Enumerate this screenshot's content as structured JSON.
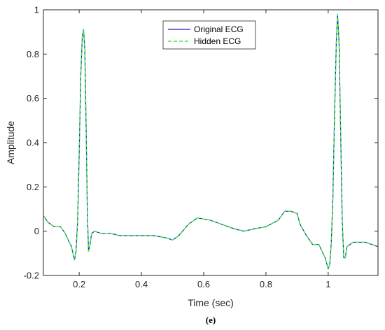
{
  "chart_data": {
    "type": "line",
    "title": "",
    "xlabel": "Time (sec)",
    "ylabel": "Amplitude",
    "xlim": [
      0.085,
      1.16
    ],
    "ylim": [
      -0.2,
      1.0
    ],
    "xticks": [
      0.2,
      0.4,
      0.6,
      0.8,
      1.0
    ],
    "xtick_labels": [
      "0.2",
      "0.4",
      "0.6",
      "0.8",
      "1"
    ],
    "yticks": [
      -0.2,
      0,
      0.2,
      0.4,
      0.6,
      0.8,
      1.0
    ],
    "ytick_labels": [
      "-0.2",
      "0",
      "0.2",
      "0.4",
      "0.6",
      "0.8",
      "1"
    ],
    "grid": false,
    "legend_position": "top-center",
    "series": [
      {
        "name": "Original ECG",
        "color": "#1f1fbf",
        "style": "solid",
        "x": [
          0.085,
          0.1,
          0.12,
          0.14,
          0.155,
          0.165,
          0.175,
          0.18,
          0.185,
          0.19,
          0.195,
          0.2,
          0.205,
          0.21,
          0.214,
          0.218,
          0.222,
          0.226,
          0.23,
          0.235,
          0.24,
          0.25,
          0.27,
          0.3,
          0.33,
          0.36,
          0.4,
          0.44,
          0.48,
          0.5,
          0.52,
          0.55,
          0.58,
          0.62,
          0.66,
          0.7,
          0.73,
          0.76,
          0.8,
          0.84,
          0.86,
          0.88,
          0.9,
          0.91,
          0.93,
          0.95,
          0.97,
          0.98,
          0.99,
          1.0,
          1.005,
          1.01,
          1.015,
          1.02,
          1.026,
          1.03,
          1.035,
          1.04,
          1.045,
          1.05,
          1.055,
          1.06,
          1.08,
          1.1,
          1.12,
          1.14,
          1.16
        ],
        "values": [
          0.07,
          0.04,
          0.02,
          0.02,
          -0.01,
          -0.04,
          -0.07,
          -0.1,
          -0.13,
          -0.09,
          0.05,
          0.35,
          0.7,
          0.88,
          0.91,
          0.82,
          0.5,
          0.1,
          -0.09,
          -0.06,
          -0.01,
          0.0,
          -0.01,
          -0.01,
          -0.02,
          -0.02,
          -0.02,
          -0.02,
          -0.03,
          -0.04,
          -0.02,
          0.03,
          0.06,
          0.05,
          0.03,
          0.01,
          0.0,
          0.01,
          0.02,
          0.05,
          0.09,
          0.09,
          0.08,
          0.03,
          -0.02,
          -0.06,
          -0.06,
          -0.09,
          -0.12,
          -0.17,
          -0.15,
          -0.05,
          0.15,
          0.5,
          0.85,
          0.98,
          0.85,
          0.45,
          0.05,
          -0.12,
          -0.12,
          -0.07,
          -0.05,
          -0.05,
          -0.05,
          -0.06,
          -0.07
        ]
      },
      {
        "name": "Hidden ECG",
        "color": "#33ee33",
        "style": "dashed",
        "x": [
          0.085,
          0.1,
          0.12,
          0.14,
          0.155,
          0.165,
          0.175,
          0.18,
          0.185,
          0.19,
          0.195,
          0.2,
          0.205,
          0.21,
          0.214,
          0.218,
          0.222,
          0.226,
          0.23,
          0.235,
          0.24,
          0.25,
          0.27,
          0.3,
          0.33,
          0.36,
          0.4,
          0.44,
          0.48,
          0.5,
          0.52,
          0.55,
          0.58,
          0.62,
          0.66,
          0.7,
          0.73,
          0.76,
          0.8,
          0.84,
          0.86,
          0.88,
          0.9,
          0.91,
          0.93,
          0.95,
          0.97,
          0.98,
          0.99,
          1.0,
          1.005,
          1.01,
          1.015,
          1.02,
          1.026,
          1.03,
          1.035,
          1.04,
          1.045,
          1.05,
          1.055,
          1.06,
          1.08,
          1.1,
          1.12,
          1.14,
          1.16
        ],
        "values": [
          0.07,
          0.04,
          0.02,
          0.02,
          -0.01,
          -0.04,
          -0.07,
          -0.1,
          -0.13,
          -0.09,
          0.05,
          0.35,
          0.7,
          0.88,
          0.91,
          0.82,
          0.5,
          0.1,
          -0.09,
          -0.06,
          -0.01,
          0.0,
          -0.01,
          -0.01,
          -0.02,
          -0.02,
          -0.02,
          -0.02,
          -0.03,
          -0.04,
          -0.02,
          0.03,
          0.06,
          0.05,
          0.03,
          0.01,
          0.0,
          0.01,
          0.02,
          0.05,
          0.09,
          0.09,
          0.08,
          0.03,
          -0.02,
          -0.06,
          -0.06,
          -0.09,
          -0.12,
          -0.17,
          -0.15,
          -0.05,
          0.15,
          0.5,
          0.85,
          0.98,
          0.85,
          0.45,
          0.05,
          -0.12,
          -0.12,
          -0.07,
          -0.05,
          -0.05,
          -0.05,
          -0.06,
          -0.07
        ]
      }
    ]
  },
  "caption": "(e)"
}
